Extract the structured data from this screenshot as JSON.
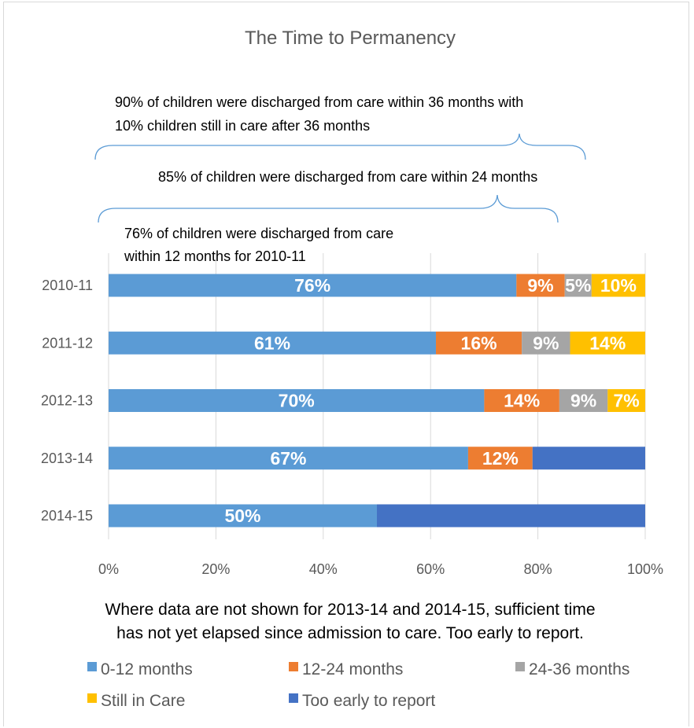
{
  "chart_data": {
    "type": "bar",
    "orientation": "horizontal",
    "stacked": "percent",
    "title": "The Time to Permanency",
    "categories": [
      "2010-11",
      "2011-12",
      "2012-13",
      "2013-14",
      "2014-15"
    ],
    "series": [
      {
        "name": "0-12 months",
        "color": "#5b9bd5",
        "values": [
          76,
          61,
          70,
          67,
          50
        ],
        "labels": [
          "76%",
          "61%",
          "70%",
          "67%",
          "50%"
        ]
      },
      {
        "name": "12-24 months",
        "color": "#ed7d31",
        "values": [
          9,
          16,
          14,
          12,
          0
        ],
        "labels": [
          "9%",
          "16%",
          "14%",
          "12%",
          ""
        ]
      },
      {
        "name": "24-36 months",
        "color": "#a5a5a5",
        "values": [
          5,
          9,
          9,
          0,
          0
        ],
        "labels": [
          "5%",
          "9%",
          "9%",
          "",
          ""
        ]
      },
      {
        "name": "Still in Care",
        "color": "#ffc000",
        "values": [
          10,
          14,
          7,
          0,
          0
        ],
        "labels": [
          "10%",
          "14%",
          "7%",
          "",
          ""
        ]
      },
      {
        "name": "Too early to report",
        "color": "#4472c4",
        "values": [
          0,
          0,
          0,
          21,
          50
        ],
        "labels": [
          "",
          "",
          "",
          "",
          ""
        ]
      }
    ],
    "xlim": [
      0,
      100
    ],
    "xticks": [
      "0%",
      "20%",
      "40%",
      "60%",
      "80%",
      "100%"
    ],
    "grid": true,
    "legend_position": "bottom",
    "annotations": [
      {
        "lines": [
          "90% of children were discharged from care within 36 months with",
          "10% children still in care after 36 months"
        ],
        "brace_to": 90
      },
      {
        "lines": [
          "85% of children were discharged from care within 24 months"
        ],
        "brace_to": 85
      },
      {
        "lines": [
          "76% of children were discharged from care",
          "within 12 months for 2010-11"
        ]
      }
    ],
    "note": [
      "Where data are not shown for 2013-14 and 2014-15, sufficient time",
      "has not yet elapsed since admission to care. Too early to report."
    ]
  }
}
